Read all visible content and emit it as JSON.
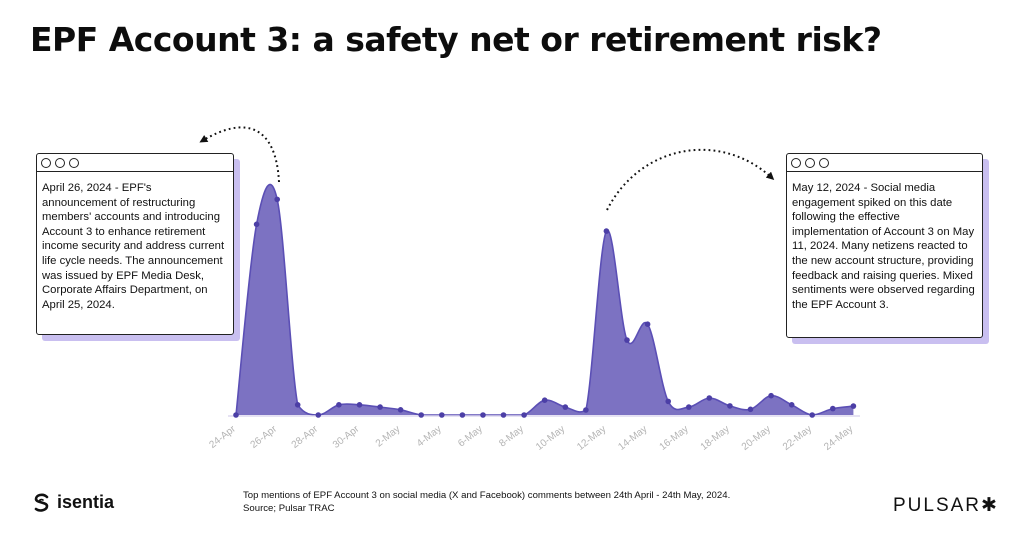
{
  "chart_data": {
    "type": "area",
    "title": "EPF Account 3: a safety net or retirement risk?",
    "x": [
      "24-Apr",
      "25-Apr",
      "26-Apr",
      "27-Apr",
      "28-Apr",
      "29-Apr",
      "30-Apr",
      "1-May",
      "2-May",
      "3-May",
      "4-May",
      "5-May",
      "6-May",
      "7-May",
      "8-May",
      "9-May",
      "10-May",
      "11-May",
      "12-May",
      "13-May",
      "14-May",
      "15-May",
      "16-May",
      "17-May",
      "18-May",
      "19-May",
      "20-May",
      "21-May",
      "22-May",
      "23-May",
      "24-May"
    ],
    "tick_labels": [
      "24-Apr",
      "26-Apr",
      "28-Apr",
      "30-Apr",
      "2-May",
      "4-May",
      "6-May",
      "8-May",
      "10-May",
      "12-May",
      "14-May",
      "16-May",
      "18-May",
      "20-May",
      "22-May",
      "24-May"
    ],
    "series": [
      {
        "values": [
          0,
          84,
          95,
          4.5,
          0,
          4.5,
          4.5,
          3.5,
          2.3,
          0,
          0,
          0,
          0,
          0,
          0,
          6.5,
          3.5,
          2.2,
          81,
          33,
          40,
          6,
          3.5,
          7.5,
          4,
          2.5,
          8.5,
          4.5,
          0,
          2.8,
          3.9
        ]
      }
    ],
    "ylim": [
      0,
      100
    ],
    "grid": false,
    "legend": "none",
    "annotations": [
      {
        "target": "26-Apr",
        "text": "April 26, 2024 - EPF's announcement of restructuring members' accounts and introducing Account 3 to enhance retirement income security and address current life cycle needs. The announcement was issued by EPF Media Desk, Corporate Affairs Department, on April 25, 2024."
      },
      {
        "target": "12-May",
        "text": "May 12, 2024 - Social media engagement spiked on this date following the effective implementation of Account 3 on May 11, 2024. Many netizens reacted to the new account structure, providing feedback and raising queries. Mixed sentiments were observed regarding the EPF Account 3."
      }
    ],
    "colors": {
      "fill": "#7c72c2",
      "line": "#5b4fb5",
      "marker": "#4c3fa6",
      "axis": "#ddd9ef",
      "tick": "#b4b4b4",
      "shadow": "#c9bff0"
    }
  },
  "footer": {
    "brand_left": "isentia",
    "caption": "Top mentions of EPF Account 3 on social media (X and Facebook) comments between 24th April - 24th May, 2024.",
    "source": "Source; Pulsar TRAC",
    "brand_right": "PULSAR",
    "brand_right_mark": "✱"
  }
}
